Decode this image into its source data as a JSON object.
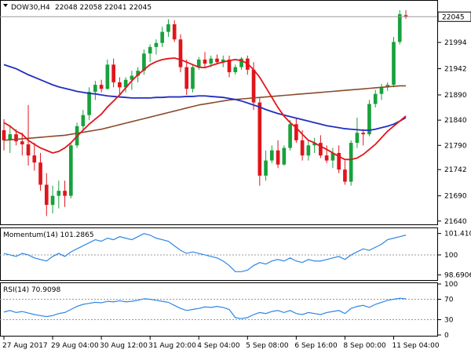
{
  "header": {
    "symbol": "DOW30,H4",
    "ohlc": "22048 22058 22041 22045"
  },
  "current_price": "22045",
  "momentum": {
    "label": "Momentum(14) 101.2865",
    "ticks": [
      "101.4101",
      "100",
      "98.6906"
    ]
  },
  "rsi": {
    "label": "RSI(14) 70.9098",
    "ticks": [
      "100",
      "70",
      "30",
      "0"
    ]
  },
  "time_labels": [
    "27 Aug 2017",
    "29 Aug 04:00",
    "30 Aug 12:00",
    "31 Aug 20:00",
    "4 Sep 04:00",
    "5 Sep 08:00",
    "6 Sep 16:00",
    "8 Sep 00:00",
    "11 Sep 04:00"
  ],
  "colors": {
    "up": "#18a13c",
    "down": "#e0151b",
    "sma_fast": "#e0151b",
    "sma_mid": "#1f2fbf",
    "sma_slow": "#8a4a2b",
    "indicator": "#2e86e6",
    "grid": "#9a9a9a",
    "text": "#000000"
  },
  "chart_data": [
    {
      "type": "candlestick",
      "yticks": [
        22045,
        21994,
        21942,
        21890,
        21840,
        21790,
        21742,
        21690,
        21640
      ],
      "ylim": [
        21635,
        22075
      ],
      "candles": [
        [
          21820,
          21842,
          21780,
          21800
        ],
        [
          21800,
          21830,
          21775,
          21812
        ],
        [
          21812,
          21822,
          21790,
          21798
        ],
        [
          21798,
          21815,
          21770,
          21792
        ],
        [
          21792,
          21870,
          21750,
          21770
        ],
        [
          21770,
          21795,
          21740,
          21756
        ],
        [
          21756,
          21775,
          21700,
          21712
        ],
        [
          21712,
          21735,
          21650,
          21672
        ],
        [
          21672,
          21710,
          21655,
          21690
        ],
        [
          21690,
          21720,
          21665,
          21700
        ],
        [
          21700,
          21720,
          21668,
          21690
        ],
        [
          21690,
          21795,
          21685,
          21790
        ],
        [
          21790,
          21835,
          21785,
          21828
        ],
        [
          21828,
          21860,
          21820,
          21850
        ],
        [
          21850,
          21905,
          21840,
          21896
        ],
        [
          21896,
          21918,
          21880,
          21910
        ],
        [
          21910,
          21920,
          21895,
          21902
        ],
        [
          21902,
          21960,
          21900,
          21950
        ],
        [
          21950,
          21962,
          21905,
          21915
        ],
        [
          21915,
          21925,
          21890,
          21905
        ],
        [
          21905,
          21925,
          21895,
          21920
        ],
        [
          21920,
          21938,
          21900,
          21928
        ],
        [
          21928,
          21945,
          21915,
          21938
        ],
        [
          21938,
          21980,
          21930,
          21972
        ],
        [
          21972,
          21990,
          21955,
          21985
        ],
        [
          21985,
          22000,
          21970,
          21993
        ],
        [
          21993,
          22025,
          21985,
          22015
        ],
        [
          22015,
          22040,
          22005,
          22030
        ],
        [
          22030,
          22038,
          21995,
          22000
        ],
        [
          22000,
          22010,
          21935,
          21945
        ],
        [
          21945,
          21960,
          21890,
          21902
        ],
        [
          21902,
          21950,
          21895,
          21945
        ],
        [
          21945,
          21965,
          21940,
          21960
        ],
        [
          21960,
          21975,
          21945,
          21952
        ],
        [
          21952,
          21968,
          21945,
          21962
        ],
        [
          21962,
          21970,
          21950,
          21955
        ],
        [
          21955,
          21968,
          21945,
          21960
        ],
        [
          21960,
          21968,
          21925,
          21935
        ],
        [
          21935,
          21950,
          21930,
          21945
        ],
        [
          21945,
          21965,
          21940,
          21962
        ],
        [
          21962,
          21968,
          21930,
          21940
        ],
        [
          21940,
          21955,
          21860,
          21875
        ],
        [
          21875,
          21885,
          21710,
          21730
        ],
        [
          21730,
          21780,
          21720,
          21760
        ],
        [
          21760,
          21790,
          21755,
          21780
        ],
        [
          21780,
          21800,
          21745,
          21752
        ],
        [
          21752,
          21790,
          21750,
          21785
        ],
        [
          21785,
          21840,
          21780,
          21832
        ],
        [
          21832,
          21845,
          21795,
          21800
        ],
        [
          21800,
          21820,
          21760,
          21770
        ],
        [
          21770,
          21800,
          21760,
          21790
        ],
        [
          21790,
          21805,
          21775,
          21795
        ],
        [
          21795,
          21810,
          21765,
          21770
        ],
        [
          21770,
          21790,
          21755,
          21760
        ],
        [
          21760,
          21785,
          21745,
          21775
        ],
        [
          21775,
          21790,
          21735,
          21742
        ],
        [
          21742,
          21760,
          21712,
          21718
        ],
        [
          21718,
          21800,
          21710,
          21795
        ],
        [
          21795,
          21845,
          21785,
          21815
        ],
        [
          21815,
          21822,
          21790,
          21812
        ],
        [
          21812,
          21880,
          21808,
          21872
        ],
        [
          21872,
          21900,
          21865,
          21892
        ],
        [
          21892,
          21912,
          21880,
          21905
        ],
        [
          21905,
          21915,
          21898,
          21910
        ],
        [
          21910,
          22005,
          21905,
          21995
        ],
        [
          21995,
          22058,
          21990,
          22050
        ],
        [
          22048,
          22058,
          22041,
          22045
        ]
      ],
      "sma_fast": [
        21835,
        21828,
        21818,
        21812,
        21800,
        21792,
        21785,
        21780,
        21775,
        21778,
        21785,
        21795,
        21808,
        21820,
        21832,
        21842,
        21852,
        21866,
        21878,
        21890,
        21904,
        21918,
        21930,
        21940,
        21950,
        21956,
        21960,
        21962,
        21963,
        21960,
        21955,
        21950,
        21945,
        21944,
        21948,
        21952,
        21955,
        21958,
        21960,
        21958,
        21952,
        21940,
        21925,
        21905,
        21885,
        21865,
        21848,
        21835,
        21825,
        21812,
        21800,
        21795,
        21788,
        21782,
        21775,
        21768,
        21762,
        21762,
        21765,
        21772,
        21782,
        21792,
        21805,
        21818,
        21828,
        21838,
        21848
      ],
      "sma_mid": [
        21950,
        21946,
        21942,
        21936,
        21930,
        21925,
        21920,
        21915,
        21910,
        21906,
        21903,
        21900,
        21897,
        21895,
        21893,
        21892,
        21890,
        21888,
        21887,
        21886,
        21885,
        21884,
        21884,
        21884,
        21884,
        21885,
        21885,
        21886,
        21886,
        21886,
        21887,
        21887,
        21888,
        21888,
        21887,
        21886,
        21885,
        21883,
        21881,
        21878,
        21874,
        21870,
        21866,
        21861,
        21857,
        21853,
        21850,
        21847,
        21844,
        21841,
        21838,
        21835,
        21832,
        21829,
        21827,
        21825,
        21823,
        21822,
        21821,
        21820,
        21820,
        21822,
        21825,
        21828,
        21832,
        21838,
        21845
      ],
      "sma_slow": [
        21800,
        21801,
        21802,
        21803,
        21804,
        21805,
        21806,
        21807,
        21808,
        21809,
        21810,
        21812,
        21814,
        21816,
        21818,
        21820,
        21822,
        21825,
        21828,
        21831,
        21834,
        21837,
        21840,
        21843,
        21846,
        21849,
        21852,
        21855,
        21858,
        21861,
        21864,
        21867,
        21870,
        21872,
        21874,
        21876,
        21878,
        21880,
        21881,
        21882,
        21883,
        21884,
        21885,
        21886,
        21887,
        21888,
        21889,
        21890,
        21891,
        21892,
        21893,
        21894,
        21895,
        21896,
        21897,
        21898,
        21899,
        21900,
        21901,
        21902,
        21903,
        21904,
        21905,
        21906,
        21907,
        21908,
        21908
      ]
    },
    {
      "type": "line",
      "name": "Momentum(14)",
      "ylim": [
        98.4,
        101.7
      ],
      "values": [
        100.1,
        100.0,
        99.9,
        100.1,
        100.0,
        99.8,
        99.7,
        99.6,
        99.9,
        100.1,
        99.9,
        100.2,
        100.4,
        100.6,
        100.8,
        101.0,
        100.9,
        101.1,
        101.0,
        101.2,
        101.1,
        101.0,
        101.2,
        101.4,
        101.3,
        101.1,
        101.0,
        100.9,
        100.6,
        100.3,
        100.1,
        100.2,
        100.1,
        100.0,
        99.9,
        99.8,
        99.6,
        99.3,
        98.9,
        98.9,
        99.0,
        99.3,
        99.5,
        99.4,
        99.6,
        99.7,
        99.6,
        99.8,
        99.6,
        99.5,
        99.7,
        99.6,
        99.6,
        99.7,
        99.8,
        99.9,
        99.7,
        100.0,
        100.2,
        100.4,
        100.3,
        100.5,
        100.7,
        101.0,
        101.1,
        101.2,
        101.3
      ]
    },
    {
      "type": "line",
      "name": "RSI(14)",
      "ylim": [
        0,
        100
      ],
      "values": [
        45,
        48,
        44,
        46,
        43,
        40,
        38,
        36,
        38,
        42,
        44,
        50,
        56,
        60,
        62,
        64,
        63,
        66,
        65,
        67,
        65,
        66,
        68,
        71,
        70,
        68,
        66,
        64,
        58,
        52,
        48,
        50,
        52,
        55,
        54,
        56,
        54,
        50,
        34,
        32,
        34,
        40,
        44,
        42,
        46,
        48,
        44,
        48,
        42,
        40,
        44,
        42,
        40,
        44,
        46,
        48,
        42,
        52,
        56,
        58,
        54,
        60,
        64,
        68,
        70,
        72,
        71
      ]
    }
  ]
}
